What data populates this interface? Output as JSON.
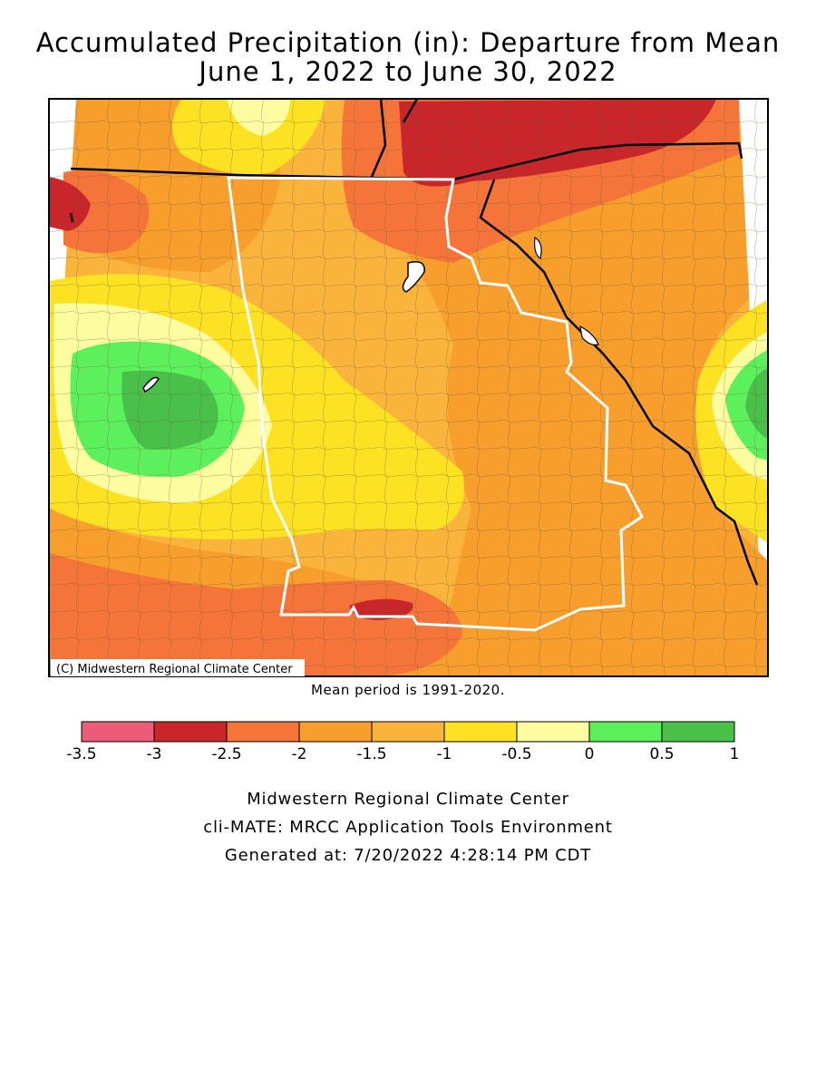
{
  "header": {
    "title_line1": "Accumulated Precipitation (in): Departure from Mean",
    "title_line2": "June 1, 2022 to June 30, 2022"
  },
  "map": {
    "copyright": "(C) Midwestern Regional Climate Center",
    "mean_period": "Mean period is 1991-2020.",
    "colors": {
      "red_dark": "#c8262a",
      "red_orange": "#f5743a",
      "orange": "#f79e2c",
      "light_orange": "#fab43c",
      "yellow": "#fde223",
      "pale_yellow": "#fefca0",
      "light_green": "#5cf05c",
      "green": "#49c049"
    }
  },
  "legend": {
    "bins": [
      {
        "range": [
          -3.5,
          -3
        ],
        "color": "#ec5c79"
      },
      {
        "range": [
          -3,
          -2.5
        ],
        "color": "#c8262a"
      },
      {
        "range": [
          -2.5,
          -2
        ],
        "color": "#f5743a"
      },
      {
        "range": [
          -2,
          -1.5
        ],
        "color": "#f79e2c"
      },
      {
        "range": [
          -1.5,
          -1
        ],
        "color": "#fab43c"
      },
      {
        "range": [
          -1,
          -0.5
        ],
        "color": "#fde223"
      },
      {
        "range": [
          -0.5,
          0
        ],
        "color": "#fefca0"
      },
      {
        "range": [
          0,
          0.5
        ],
        "color": "#5cf05c"
      },
      {
        "range": [
          0.5,
          1
        ],
        "color": "#49c049"
      }
    ],
    "tick_labels": [
      "-3.5",
      "-3",
      "-2.5",
      "-2",
      "-1.5",
      "-1",
      "-0.5",
      "0",
      "0.5",
      "1"
    ]
  },
  "footer": {
    "line1": "Midwestern Regional Climate Center",
    "line2": "cli-MATE: MRCC Application Tools Environment",
    "line3": "Generated at: 7/20/2022 4:28:14 PM CDT"
  }
}
